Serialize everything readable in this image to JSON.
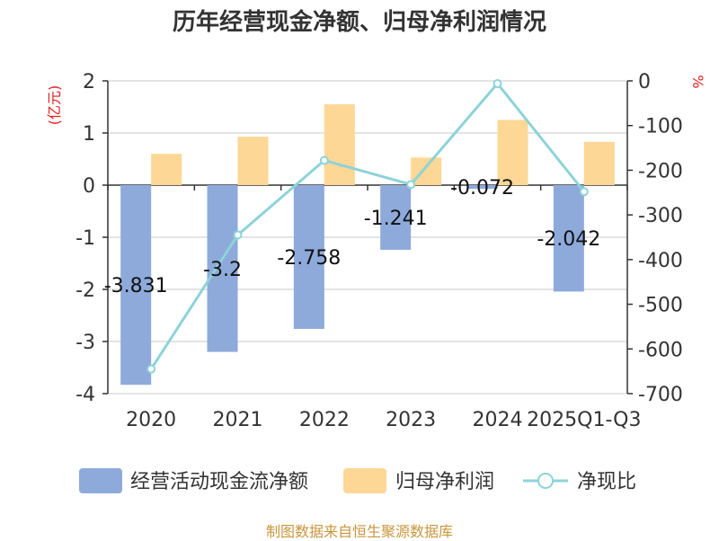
{
  "chart_data": {
    "type": "bar+line",
    "title": "历年经营现金净额、归母净利润情况",
    "categories": [
      "2020",
      "2021",
      "2022",
      "2023",
      "2024",
      "2025Q1-Q3"
    ],
    "series": [
      {
        "name": "经营活动现金流净额",
        "type": "bar",
        "axis": "left",
        "color": "#8eaadb",
        "values": [
          -3.831,
          -3.2,
          -2.758,
          -1.241,
          -0.072,
          -2.042
        ],
        "labels": [
          "-3.831",
          "-3.2",
          "-2.758",
          "-1.241",
          "-0.072",
          "-2.042"
        ]
      },
      {
        "name": "归母净利润",
        "type": "bar",
        "axis": "left",
        "color": "#fdd795",
        "values": [
          0.6,
          0.93,
          1.55,
          0.53,
          1.25,
          0.83
        ]
      },
      {
        "name": "净现比",
        "type": "line",
        "axis": "right",
        "color": "#8dd3d8",
        "values": [
          -645,
          -345,
          -178,
          -232,
          -6,
          -248
        ]
      }
    ],
    "ylabel_left": "(亿元)",
    "ylabel_right": "%",
    "ylim_left": [
      -4,
      2
    ],
    "yticks_left": [
      "2",
      "1",
      "0",
      "-1",
      "-2",
      "-3",
      "-4"
    ],
    "ylim_right": [
      -700,
      0
    ],
    "yticks_right": [
      "0",
      "-100",
      "-200",
      "-300",
      "-400",
      "-500",
      "-600",
      "-700"
    ],
    "legend": [
      "经营活动现金流净额",
      "归母净利润",
      "净现比"
    ],
    "legend_position": "bottom",
    "source": "制图数据来自恒生聚源数据库"
  }
}
